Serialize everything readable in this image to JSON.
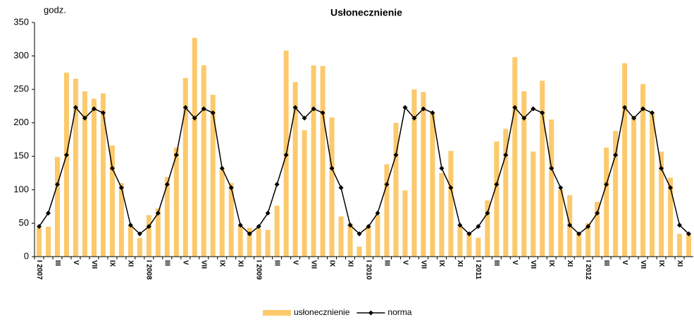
{
  "chart_data": {
    "type": "bar_line",
    "title": "Usłonecznienie",
    "y_label": "godz.",
    "categories": [
      "I 2007",
      null,
      "III",
      null,
      "V",
      null,
      "VII",
      null,
      "IX",
      null,
      "XI",
      null,
      "I 2008",
      null,
      "III",
      null,
      "V",
      null,
      "VII",
      null,
      "IX",
      null,
      "XI",
      null,
      "I 2009",
      null,
      "III",
      null,
      "V",
      null,
      "VII",
      null,
      "IX",
      null,
      "XI",
      null,
      "I 2010",
      null,
      "III",
      null,
      "V",
      null,
      "VII",
      null,
      "IX",
      null,
      "XI",
      null,
      "I 2011",
      null,
      "III",
      null,
      "V",
      null,
      "VII",
      null,
      "IX",
      null,
      "XI",
      null,
      "I 2012",
      null,
      "III",
      null,
      "V",
      null,
      "VII",
      null,
      "IX",
      null,
      "XI",
      null
    ],
    "series": [
      {
        "name": "usłonecznienie",
        "color": "#fcc96b",
        "kind": "bar",
        "values": [
          43,
          45,
          149,
          275,
          266,
          247,
          236,
          244,
          166,
          110,
          46,
          28,
          62,
          72,
          119,
          163,
          267,
          327,
          286,
          242,
          130,
          110,
          46,
          43,
          42,
          40,
          76,
          308,
          261,
          189,
          286,
          285,
          208,
          60,
          50,
          15,
          45,
          62,
          138,
          200,
          99,
          250,
          246,
          215,
          125,
          158,
          45,
          35,
          28,
          84,
          172,
          191,
          298,
          247,
          157,
          263,
          205,
          100,
          92,
          35,
          50,
          82,
          163,
          188,
          289,
          210,
          258,
          215,
          157,
          118,
          34,
          33
        ]
      },
      {
        "name": "norma",
        "color": "#000000",
        "kind": "line",
        "values": [
          45,
          65,
          108,
          152,
          223,
          207,
          221,
          215,
          132,
          103,
          47,
          34,
          45,
          65,
          108,
          152,
          223,
          207,
          221,
          215,
          132,
          103,
          47,
          34,
          45,
          65,
          108,
          152,
          223,
          207,
          221,
          215,
          132,
          103,
          47,
          34,
          45,
          65,
          108,
          152,
          223,
          207,
          221,
          215,
          132,
          103,
          47,
          34,
          45,
          65,
          108,
          152,
          223,
          207,
          221,
          215,
          132,
          103,
          47,
          34,
          45,
          65,
          108,
          152,
          223,
          207,
          221,
          215,
          132,
          103,
          47,
          34
        ]
      }
    ],
    "ylim": [
      0,
      350
    ],
    "yticks": [
      0,
      50,
      100,
      150,
      200,
      250,
      300,
      350
    ],
    "legend": "bottom"
  }
}
